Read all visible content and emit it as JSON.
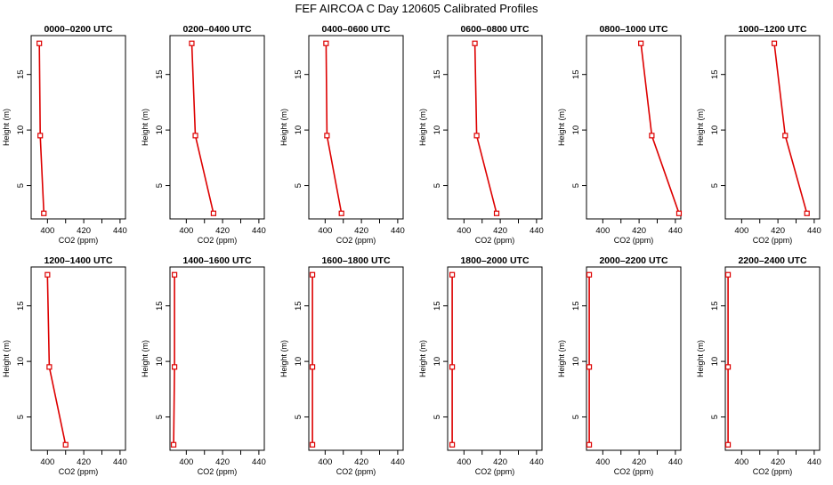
{
  "figure": {
    "title": "FEF AIRCOA C  Day 120605  Calibrated Profiles"
  },
  "colors": {
    "profile": "#dd0000",
    "axis": "#000000"
  },
  "chart_data": [
    {
      "type": "line",
      "title": "0000–0200 UTC",
      "xlabel": "CO2 (ppm)",
      "ylabel": "Height (m)",
      "xlim": [
        391,
        443
      ],
      "ylim": [
        2,
        18.5
      ],
      "xticks": [
        400,
        420,
        440
      ],
      "yticks": [
        5,
        10,
        15
      ],
      "series": [
        {
          "name": "profile",
          "x": [
            398,
            396,
            395.5
          ],
          "y": [
            2.5,
            9.5,
            17.8
          ]
        }
      ]
    },
    {
      "type": "line",
      "title": "0200–0400 UTC",
      "xlabel": "CO2 (ppm)",
      "ylabel": "Height (m)",
      "xlim": [
        391,
        443
      ],
      "ylim": [
        2,
        18.5
      ],
      "xticks": [
        400,
        420,
        440
      ],
      "yticks": [
        5,
        10,
        15
      ],
      "series": [
        {
          "name": "profile",
          "x": [
            415,
            405,
            403
          ],
          "y": [
            2.5,
            9.5,
            17.8
          ]
        }
      ]
    },
    {
      "type": "line",
      "title": "0400–0600 UTC",
      "xlabel": "CO2 (ppm)",
      "ylabel": "Height (m)",
      "xlim": [
        391,
        443
      ],
      "ylim": [
        2,
        18.5
      ],
      "xticks": [
        400,
        420,
        440
      ],
      "yticks": [
        5,
        10,
        15
      ],
      "series": [
        {
          "name": "profile",
          "x": [
            409,
            401,
            400.5
          ],
          "y": [
            2.5,
            9.5,
            17.8
          ]
        }
      ]
    },
    {
      "type": "line",
      "title": "0600–0800 UTC",
      "xlabel": "CO2 (ppm)",
      "ylabel": "Height (m)",
      "xlim": [
        391,
        443
      ],
      "ylim": [
        2,
        18.5
      ],
      "xticks": [
        400,
        420,
        440
      ],
      "yticks": [
        5,
        10,
        15
      ],
      "series": [
        {
          "name": "profile",
          "x": [
            418,
            407,
            406
          ],
          "y": [
            2.5,
            9.5,
            17.8
          ]
        }
      ]
    },
    {
      "type": "line",
      "title": "0800–1000 UTC",
      "xlabel": "CO2 (ppm)",
      "ylabel": "Height (m)",
      "xlim": [
        391,
        443
      ],
      "ylim": [
        2,
        18.5
      ],
      "xticks": [
        400,
        420,
        440
      ],
      "yticks": [
        5,
        10,
        15
      ],
      "series": [
        {
          "name": "profile",
          "x": [
            442,
            427,
            421
          ],
          "y": [
            2.5,
            9.5,
            17.8
          ]
        }
      ]
    },
    {
      "type": "line",
      "title": "1000–1200 UTC",
      "xlabel": "CO2 (ppm)",
      "ylabel": "Height (m)",
      "xlim": [
        391,
        443
      ],
      "ylim": [
        2,
        18.5
      ],
      "xticks": [
        400,
        420,
        440
      ],
      "yticks": [
        5,
        10,
        15
      ],
      "series": [
        {
          "name": "profile",
          "x": [
            436,
            424,
            418
          ],
          "y": [
            2.5,
            9.5,
            17.8
          ]
        }
      ]
    },
    {
      "type": "line",
      "title": "1200–1400 UTC",
      "xlabel": "CO2 (ppm)",
      "ylabel": "Height (m)",
      "xlim": [
        391,
        443
      ],
      "ylim": [
        2,
        18.5
      ],
      "xticks": [
        400,
        420,
        440
      ],
      "yticks": [
        5,
        10,
        15
      ],
      "series": [
        {
          "name": "profile",
          "x": [
            410,
            401,
            400
          ],
          "y": [
            2.5,
            9.5,
            17.8
          ]
        }
      ]
    },
    {
      "type": "line",
      "title": "1400–1600 UTC",
      "xlabel": "CO2 (ppm)",
      "ylabel": "Height (m)",
      "xlim": [
        391,
        443
      ],
      "ylim": [
        2,
        18.5
      ],
      "xticks": [
        400,
        420,
        440
      ],
      "yticks": [
        5,
        10,
        15
      ],
      "series": [
        {
          "name": "profile",
          "x": [
            393,
            393.5,
            393.5
          ],
          "y": [
            2.5,
            9.5,
            17.8
          ]
        }
      ]
    },
    {
      "type": "line",
      "title": "1600–1800 UTC",
      "xlabel": "CO2 (ppm)",
      "ylabel": "Height (m)",
      "xlim": [
        391,
        443
      ],
      "ylim": [
        2,
        18.5
      ],
      "xticks": [
        400,
        420,
        440
      ],
      "yticks": [
        5,
        10,
        15
      ],
      "series": [
        {
          "name": "profile",
          "x": [
            393,
            393,
            393
          ],
          "y": [
            2.5,
            9.5,
            17.8
          ]
        }
      ]
    },
    {
      "type": "line",
      "title": "1800–2000 UTC",
      "xlabel": "CO2 (ppm)",
      "ylabel": "Height (m)",
      "xlim": [
        391,
        443
      ],
      "ylim": [
        2,
        18.5
      ],
      "xticks": [
        400,
        420,
        440
      ],
      "yticks": [
        5,
        10,
        15
      ],
      "series": [
        {
          "name": "profile",
          "x": [
            393.5,
            393.5,
            393.5
          ],
          "y": [
            2.5,
            9.5,
            17.8
          ]
        }
      ]
    },
    {
      "type": "line",
      "title": "2000–2200 UTC",
      "xlabel": "CO2 (ppm)",
      "ylabel": "Height (m)",
      "xlim": [
        391,
        443
      ],
      "ylim": [
        2,
        18.5
      ],
      "xticks": [
        400,
        420,
        440
      ],
      "yticks": [
        5,
        10,
        15
      ],
      "series": [
        {
          "name": "profile",
          "x": [
            392.5,
            392.5,
            392.5
          ],
          "y": [
            2.5,
            9.5,
            17.8
          ]
        }
      ]
    },
    {
      "type": "line",
      "title": "2200–2400 UTC",
      "xlabel": "CO2 (ppm)",
      "ylabel": "Height (m)",
      "xlim": [
        391,
        443
      ],
      "ylim": [
        2,
        18.5
      ],
      "xticks": [
        400,
        420,
        440
      ],
      "yticks": [
        5,
        10,
        15
      ],
      "series": [
        {
          "name": "profile",
          "x": [
            392.5,
            392.5,
            392.5
          ],
          "y": [
            2.5,
            9.5,
            17.8
          ]
        }
      ]
    }
  ]
}
